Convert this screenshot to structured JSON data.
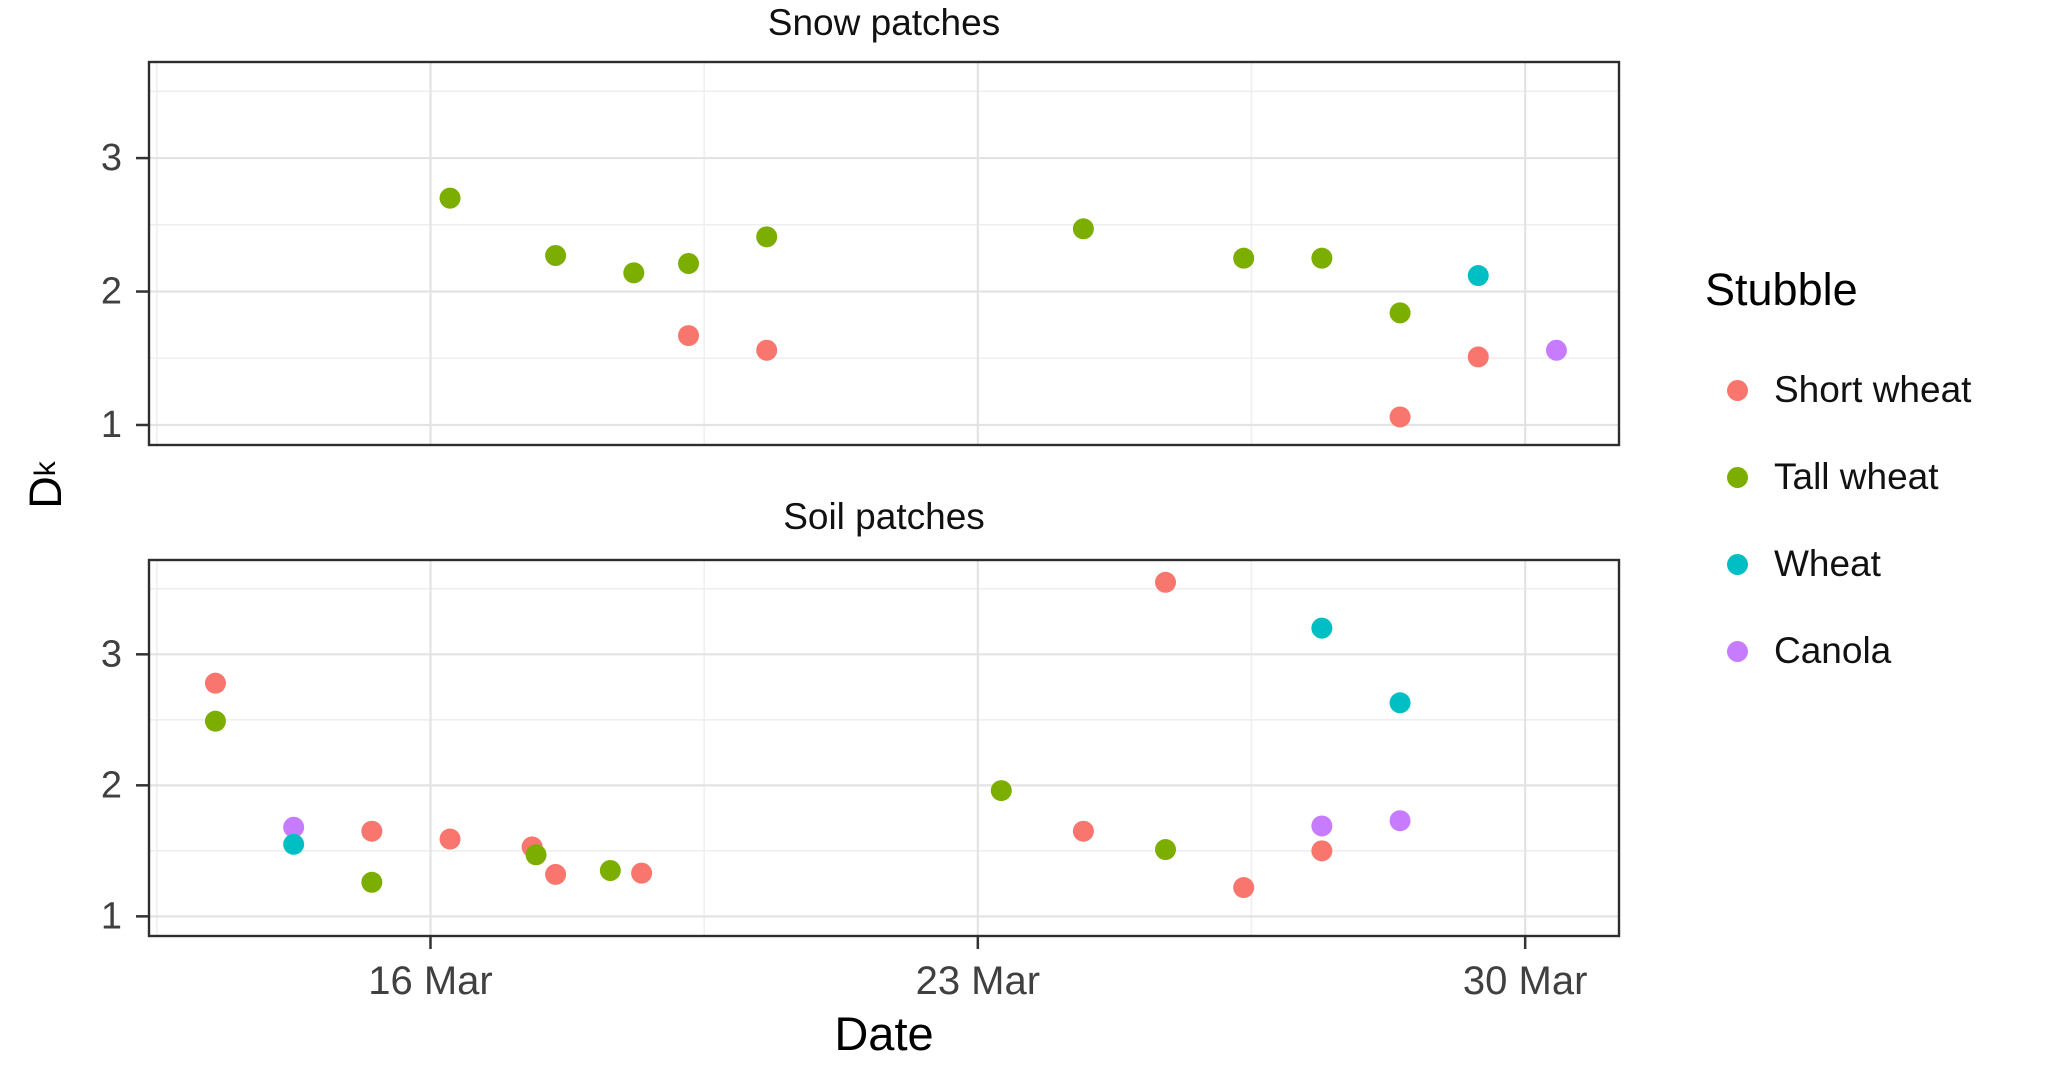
{
  "chart_data": {
    "type": "scatter",
    "xlabel": "Date",
    "ylabel_main": "D",
    "ylabel_sub": "k",
    "x_unit": "day of March",
    "x_domain": [
      12.4,
      31.2
    ],
    "y_domain": [
      0.85,
      3.72
    ],
    "x_ticks": [
      {
        "value": 16,
        "label": "16 Mar"
      },
      {
        "value": 23,
        "label": "23 Mar"
      },
      {
        "value": 30,
        "label": "30 Mar"
      }
    ],
    "x_minor": [
      12.5,
      19.5,
      26.5
    ],
    "y_ticks": [
      {
        "value": 1,
        "label": "1"
      },
      {
        "value": 2,
        "label": "2"
      },
      {
        "value": 3,
        "label": "3"
      }
    ],
    "y_minor": [
      1.5,
      2.5,
      3.5
    ],
    "grid": true,
    "legend": {
      "title": "Stubble",
      "position": "right"
    },
    "series": [
      {
        "name": "Short wheat",
        "color": "#F8766D"
      },
      {
        "name": "Tall wheat",
        "color": "#7CAE00"
      },
      {
        "name": "Wheat",
        "color": "#00BFC4"
      },
      {
        "name": "Canola",
        "color": "#C77CFF"
      }
    ],
    "facets": [
      {
        "title": "Snow patches",
        "points": [
          {
            "x": 16.25,
            "y": 2.7,
            "series": "Tall wheat"
          },
          {
            "x": 17.6,
            "y": 2.27,
            "series": "Tall wheat"
          },
          {
            "x": 18.6,
            "y": 2.14,
            "series": "Tall wheat"
          },
          {
            "x": 19.3,
            "y": 2.21,
            "series": "Tall wheat"
          },
          {
            "x": 20.3,
            "y": 2.41,
            "series": "Tall wheat"
          },
          {
            "x": 24.35,
            "y": 2.47,
            "series": "Tall wheat"
          },
          {
            "x": 26.4,
            "y": 2.25,
            "series": "Tall wheat"
          },
          {
            "x": 27.4,
            "y": 2.25,
            "series": "Tall wheat"
          },
          {
            "x": 28.4,
            "y": 1.84,
            "series": "Tall wheat"
          },
          {
            "x": 19.3,
            "y": 1.67,
            "series": "Short wheat"
          },
          {
            "x": 20.3,
            "y": 1.56,
            "series": "Short wheat"
          },
          {
            "x": 28.4,
            "y": 1.06,
            "series": "Short wheat"
          },
          {
            "x": 29.4,
            "y": 1.51,
            "series": "Short wheat"
          },
          {
            "x": 29.4,
            "y": 2.12,
            "series": "Wheat"
          },
          {
            "x": 30.4,
            "y": 1.56,
            "series": "Canola"
          }
        ]
      },
      {
        "title": "Soil patches",
        "points": [
          {
            "x": 13.25,
            "y": 2.78,
            "series": "Short wheat"
          },
          {
            "x": 13.25,
            "y": 2.49,
            "series": "Tall wheat"
          },
          {
            "x": 14.25,
            "y": 1.68,
            "series": "Canola"
          },
          {
            "x": 14.25,
            "y": 1.55,
            "series": "Wheat"
          },
          {
            "x": 15.25,
            "y": 1.65,
            "series": "Short wheat"
          },
          {
            "x": 15.25,
            "y": 1.26,
            "series": "Tall wheat"
          },
          {
            "x": 16.25,
            "y": 1.59,
            "series": "Short wheat"
          },
          {
            "x": 17.3,
            "y": 1.53,
            "series": "Short wheat"
          },
          {
            "x": 17.35,
            "y": 1.47,
            "series": "Tall wheat"
          },
          {
            "x": 17.6,
            "y": 1.32,
            "series": "Short wheat"
          },
          {
            "x": 18.3,
            "y": 1.35,
            "series": "Tall wheat"
          },
          {
            "x": 18.7,
            "y": 1.33,
            "series": "Short wheat"
          },
          {
            "x": 23.3,
            "y": 1.96,
            "series": "Tall wheat"
          },
          {
            "x": 24.35,
            "y": 1.65,
            "series": "Short wheat"
          },
          {
            "x": 25.4,
            "y": 3.55,
            "series": "Short wheat"
          },
          {
            "x": 25.4,
            "y": 1.51,
            "series": "Tall wheat"
          },
          {
            "x": 26.4,
            "y": 1.22,
            "series": "Short wheat"
          },
          {
            "x": 27.4,
            "y": 3.2,
            "series": "Wheat"
          },
          {
            "x": 27.4,
            "y": 1.69,
            "series": "Canola"
          },
          {
            "x": 27.4,
            "y": 1.5,
            "series": "Short wheat"
          },
          {
            "x": 28.4,
            "y": 2.63,
            "series": "Wheat"
          },
          {
            "x": 28.4,
            "y": 1.73,
            "series": "Canola"
          }
        ]
      }
    ]
  }
}
